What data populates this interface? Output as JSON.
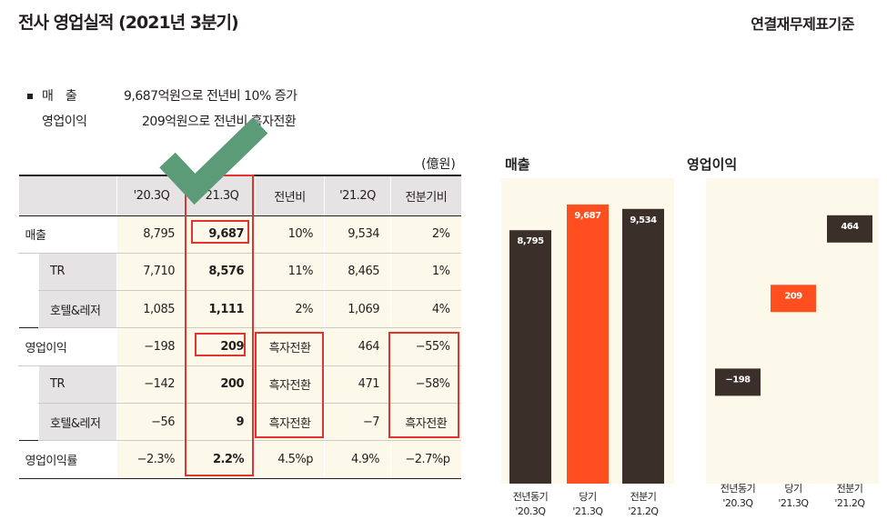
{
  "header": {
    "title": "전사 영업실적 (2021년 3분기)",
    "basis": "연결재무제표기준"
  },
  "summary": {
    "sales_label": "매　출",
    "sales_text": "9,687억원으로 전년비 10% 증가",
    "op_label": "영업이익",
    "op_text": "209억원으로 전년비 흑자전환"
  },
  "colors": {
    "dark": "#3b2f2a",
    "accent": "#ff4e1f",
    "highlight_border": "#e0342c",
    "check": "#5c9b78"
  },
  "table": {
    "unit": "(億원)",
    "columns": [
      "",
      "'20.3Q",
      "'21.3Q",
      "전년비",
      "'21.2Q",
      "전분기비"
    ],
    "rows": [
      {
        "type": "cat",
        "label": "매출",
        "values": [
          "8,795",
          "9,687",
          "10%",
          "9,534",
          "2%"
        ]
      },
      {
        "type": "sub",
        "label": "TR",
        "values": [
          "7,710",
          "8,576",
          "11%",
          "8,465",
          "1%"
        ]
      },
      {
        "type": "sub",
        "label": "호텔&레저",
        "values": [
          "1,085",
          "1,111",
          "2%",
          "1,069",
          "4%"
        ]
      },
      {
        "type": "cat",
        "label": "영업이익",
        "values": [
          "−198",
          "209",
          "흑자전환",
          "464",
          "−55%"
        ]
      },
      {
        "type": "sub",
        "label": "TR",
        "values": [
          "−142",
          "200",
          "흑자전환",
          "471",
          "−58%"
        ]
      },
      {
        "type": "sub",
        "label": "호텔&레저",
        "values": [
          "−56",
          "9",
          "흑자전환",
          "−7",
          "흑자전환"
        ]
      },
      {
        "type": "cat",
        "label": "영업이익률",
        "values": [
          "−2.3%",
          "2.2%",
          "4.5%p",
          "4.9%",
          "−2.7%p"
        ]
      }
    ]
  },
  "chart_data": [
    {
      "type": "bar",
      "title": "매출",
      "categories": [
        "전년동기 '20.3Q",
        "당기 '21.3Q",
        "전분기 '21.2Q"
      ],
      "category_lines": [
        [
          "전년동기",
          "'20.3Q"
        ],
        [
          "당기",
          "'21.3Q"
        ],
        [
          "전분기",
          "'21.2Q"
        ]
      ],
      "values": [
        8795,
        9687,
        9534
      ],
      "value_labels": [
        "8,795",
        "9,687",
        "9,534"
      ],
      "colors": [
        "#3b2f2a",
        "#ff4e1f",
        "#3b2f2a"
      ],
      "ylim": [
        0,
        10600
      ]
    },
    {
      "type": "bar",
      "title": "영업이익",
      "style": "floating",
      "categories": [
        "전년동기 '20.3Q",
        "당기 '21.3Q",
        "전분기 '21.2Q"
      ],
      "category_lines": [
        [
          "전년동기",
          "'20.3Q"
        ],
        [
          "당기",
          "'21.3Q"
        ],
        [
          "전분기",
          "'21.2Q"
        ]
      ],
      "values": [
        -198,
        209,
        464
      ],
      "value_labels": [
        "−198",
        "209",
        "464"
      ],
      "colors": [
        "#3b2f2a",
        "#ff4e1f",
        "#3b2f2a"
      ],
      "ylim": [
        -520,
        600
      ]
    }
  ]
}
